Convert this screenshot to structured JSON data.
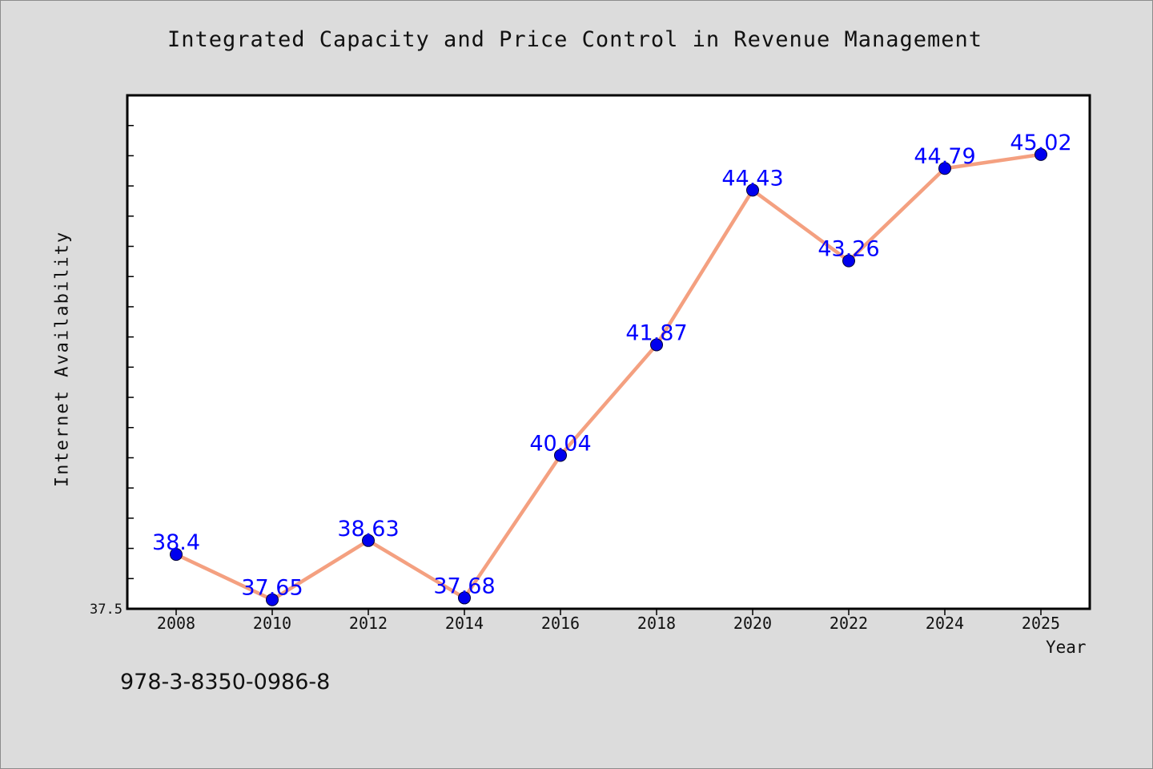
{
  "chart_data": {
    "type": "line",
    "title": "Integrated Capacity and Price Control in Revenue Management",
    "xlabel": "Year",
    "ylabel": "Internet Availability",
    "categories": [
      "2008",
      "2010",
      "2012",
      "2014",
      "2016",
      "2018",
      "2020",
      "2022",
      "2024",
      "2025"
    ],
    "series": [
      {
        "values": [
          38.4,
          37.65,
          38.63,
          37.68,
          40.04,
          41.87,
          44.43,
          43.26,
          44.79,
          45.02
        ],
        "data_labels": [
          "38.4",
          "37.65",
          "38.63",
          "37.68",
          "40.04",
          "41.87",
          "44.43",
          "43.26",
          "44.79",
          "45.02"
        ]
      }
    ],
    "ylim": [
      37.5,
      46.0
    ],
    "y_tick_labels": [
      "37.5"
    ],
    "grid": false,
    "legend": "none",
    "colors": {
      "line": "#f4a080",
      "marker": "#0000ee",
      "data_label": "#0000ff",
      "background": "#dcdcdc",
      "plot_background": "#ffffff"
    }
  },
  "footer": {
    "isbn": "978-3-8350-0986-8"
  }
}
